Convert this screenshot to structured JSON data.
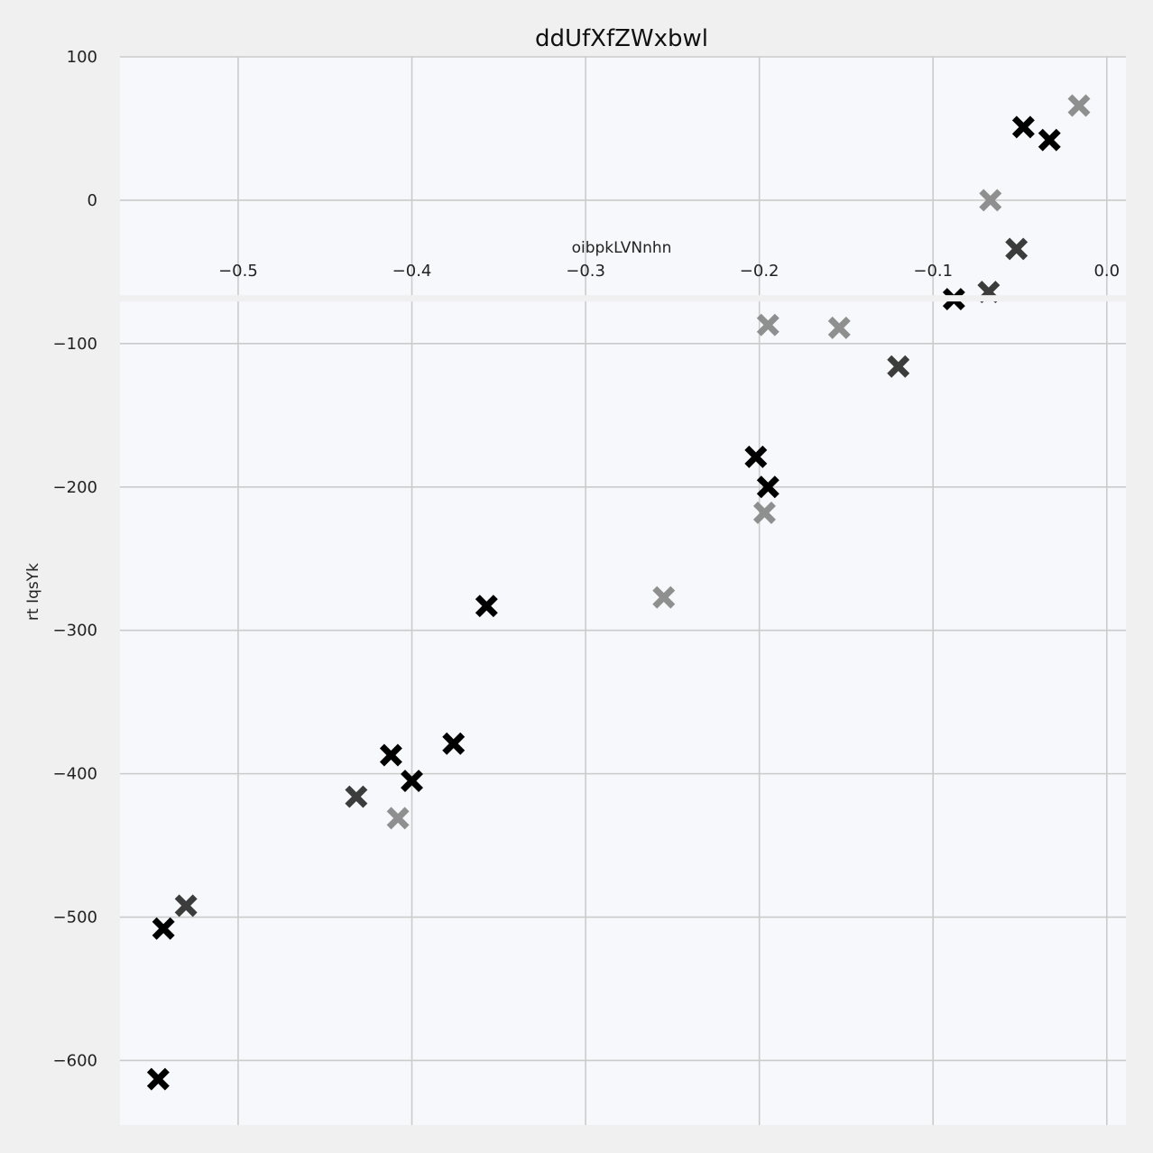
{
  "chart_data": {
    "type": "scatter",
    "title": "ddUfXfZWxbwl",
    "xlabel": "oibpkLVNnhn",
    "ylabel": "rt IqsYk",
    "xlim": [
      -0.568,
      0.011
    ],
    "ylim": [
      -645,
      100
    ],
    "x_ticks": [
      "−0.5",
      "−0.4",
      "−0.3",
      "−0.2",
      "−0.1",
      "0.0"
    ],
    "y_ticks": [
      "100",
      "0",
      "−100",
      "−200",
      "−300",
      "−400",
      "−500",
      "−600"
    ],
    "marker": "x",
    "grid": true,
    "x_axis_position": "inside, near y = -70",
    "colors": {
      "black": "#000000",
      "dark_gray": "#3c3c3c",
      "light_gray": "#8f8f8f",
      "plot_bg": "#f6f8fb",
      "fig_bg": "#f0f0f0"
    },
    "points": [
      {
        "x": -0.016,
        "y": 66,
        "color": "light_gray"
      },
      {
        "x": -0.048,
        "y": 51,
        "color": "black"
      },
      {
        "x": -0.033,
        "y": 42,
        "color": "black"
      },
      {
        "x": -0.067,
        "y": 0,
        "color": "light_gray"
      },
      {
        "x": -0.052,
        "y": -34,
        "color": "dark_gray"
      },
      {
        "x": -0.068,
        "y": -64,
        "color": "dark_gray"
      },
      {
        "x": -0.088,
        "y": -69,
        "color": "black"
      },
      {
        "x": -0.195,
        "y": -87,
        "color": "light_gray"
      },
      {
        "x": -0.154,
        "y": -89,
        "color": "light_gray"
      },
      {
        "x": -0.12,
        "y": -116,
        "color": "dark_gray"
      },
      {
        "x": -0.202,
        "y": -179,
        "color": "black"
      },
      {
        "x": -0.195,
        "y": -200,
        "color": "black"
      },
      {
        "x": -0.197,
        "y": -218,
        "color": "light_gray"
      },
      {
        "x": -0.255,
        "y": -277,
        "color": "light_gray"
      },
      {
        "x": -0.357,
        "y": -283,
        "color": "black"
      },
      {
        "x": -0.376,
        "y": -379,
        "color": "black"
      },
      {
        "x": -0.412,
        "y": -387,
        "color": "black"
      },
      {
        "x": -0.4,
        "y": -405,
        "color": "black"
      },
      {
        "x": -0.432,
        "y": -416,
        "color": "dark_gray"
      },
      {
        "x": -0.408,
        "y": -431,
        "color": "light_gray"
      },
      {
        "x": -0.53,
        "y": -492,
        "color": "dark_gray"
      },
      {
        "x": -0.543,
        "y": -508,
        "color": "black"
      },
      {
        "x": -0.546,
        "y": -613,
        "color": "black"
      }
    ]
  }
}
